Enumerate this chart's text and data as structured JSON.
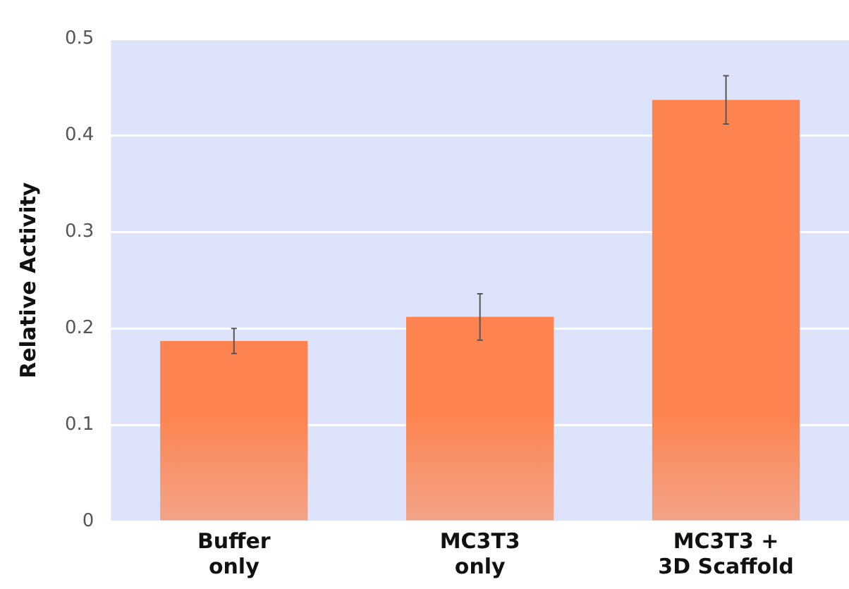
{
  "chart_data": {
    "type": "bar",
    "ylabel": "Relative Activity",
    "categories": [
      "Buffer\nonly",
      "MC3T3\nonly",
      "MC3T3 +\n3D Scaffold"
    ],
    "values": [
      0.187,
      0.212,
      0.437
    ],
    "errors": [
      0.013,
      0.024,
      0.025
    ],
    "color": "#fd8450",
    "ylim": [
      0,
      0.5
    ],
    "yticks": [
      0,
      0.1,
      0.2,
      0.3,
      0.4,
      0.5
    ],
    "grid": "y",
    "legend": false
  }
}
